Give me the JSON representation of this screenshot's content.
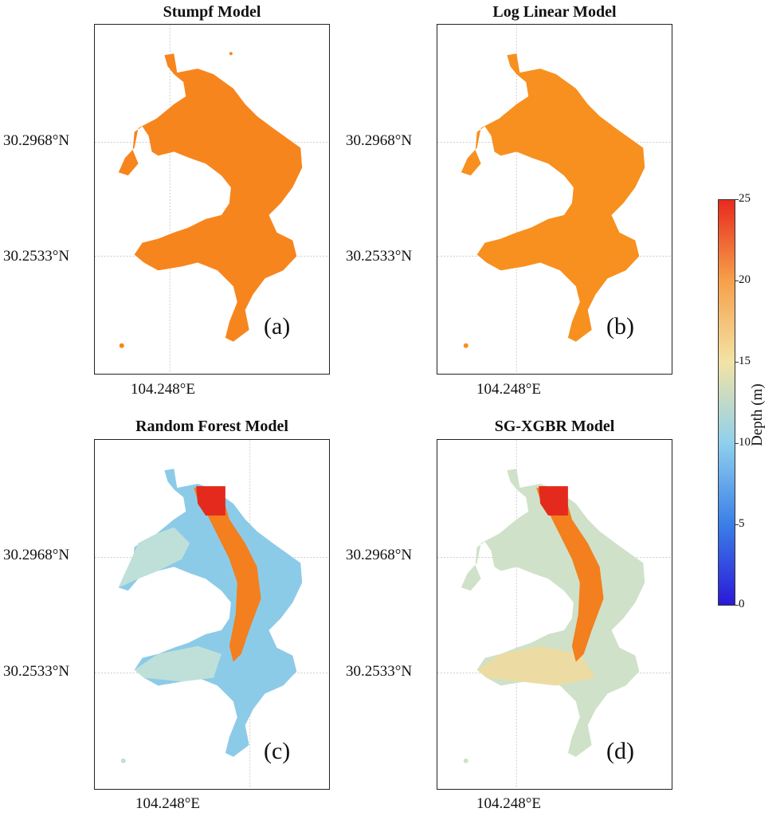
{
  "panels": [
    {
      "title": "Stumpf Model",
      "letter": "(a)",
      "lat1": "30.2968°N",
      "lat2": "30.2533°N",
      "lon": "104.248°E"
    },
    {
      "title": "Log Linear Model",
      "letter": "(b)",
      "lat1": "30.2968°N",
      "lat2": "30.2533°N",
      "lon": "104.248°E"
    },
    {
      "title": "Random Forest Model",
      "letter": "(c)",
      "lat1": "30.2968°N",
      "lat2": "30.2533°N",
      "lon": "104.248°E"
    },
    {
      "title": "SG-XGBR Model",
      "letter": "(d)",
      "lat1": "30.2968°N",
      "lat2": "30.2533°N",
      "lon": "104.248°E"
    }
  ],
  "colorbar": {
    "label": "Depth (m)",
    "ticks": [
      "0",
      "5",
      "10",
      "15",
      "20",
      "25"
    ],
    "colors": {
      "low": "#2a1ad8",
      "mid": "#f3e3a5",
      "high": "#e82a1e",
      "uniform_orange": "#f7851e"
    }
  }
}
